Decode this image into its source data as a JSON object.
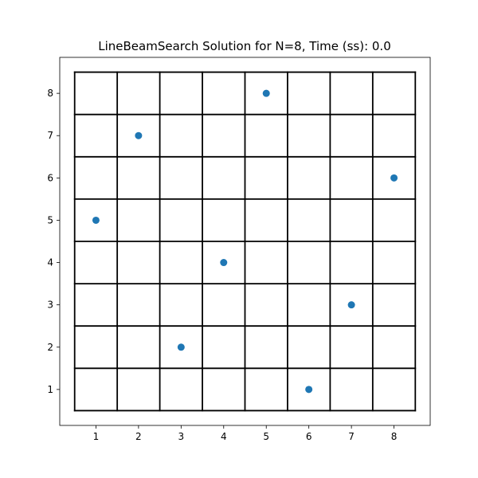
{
  "chart_data": {
    "type": "scatter",
    "title": "LineBeamSearch Solution for N=8, Time (ss): 0.0",
    "xlabel": "",
    "ylabel": "",
    "xlim": [
      0.15,
      8.85
    ],
    "ylim": [
      0.15,
      8.85
    ],
    "board_size": 8,
    "x_ticks": [
      1,
      2,
      3,
      4,
      5,
      6,
      7,
      8
    ],
    "y_ticks": [
      1,
      2,
      3,
      4,
      5,
      6,
      7,
      8
    ],
    "grid": true,
    "legend": "none",
    "points": [
      {
        "x": 1,
        "y": 5
      },
      {
        "x": 2,
        "y": 7
      },
      {
        "x": 3,
        "y": 2
      },
      {
        "x": 4,
        "y": 4
      },
      {
        "x": 5,
        "y": 8
      },
      {
        "x": 6,
        "y": 1
      },
      {
        "x": 7,
        "y": 3
      },
      {
        "x": 8,
        "y": 6
      }
    ],
    "colors": {
      "marker": "#1f77b4",
      "grid": "#000000",
      "axes": "#000000"
    }
  }
}
